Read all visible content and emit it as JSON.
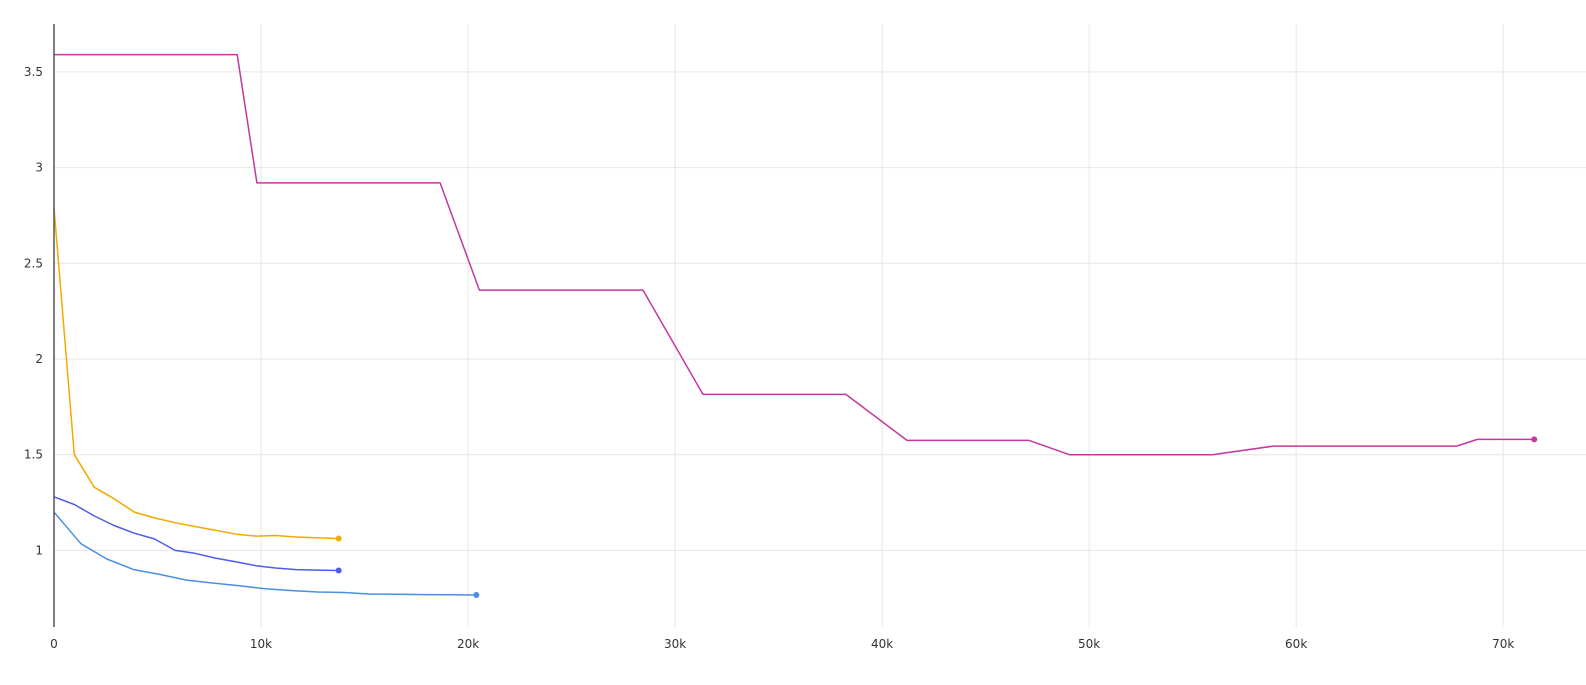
{
  "chart_data": {
    "type": "line",
    "title": "",
    "xlabel": "",
    "ylabel": "",
    "xlim": [
      0,
      74000
    ],
    "ylim": [
      0.6,
      3.75
    ],
    "grid": true,
    "legend": "none",
    "x_ticks": [
      {
        "value": 0,
        "label": "0"
      },
      {
        "value": 10000,
        "label": "10k"
      },
      {
        "value": 20000,
        "label": "20k"
      },
      {
        "value": 30000,
        "label": "30k"
      },
      {
        "value": 40000,
        "label": "40k"
      },
      {
        "value": 50000,
        "label": "50k"
      },
      {
        "value": 60000,
        "label": "60k"
      },
      {
        "value": 70000,
        "label": "70k"
      }
    ],
    "y_ticks": [
      {
        "value": 1,
        "label": "1"
      },
      {
        "value": 1.5,
        "label": "1.5"
      },
      {
        "value": 2,
        "label": "2"
      },
      {
        "value": 2.5,
        "label": "2.5"
      },
      {
        "value": 3,
        "label": "3"
      },
      {
        "value": 3.5,
        "label": "3.5"
      }
    ],
    "series": [
      {
        "color": "#c2389e",
        "points": [
          [
            0,
            3.59
          ],
          [
            8850,
            3.59
          ],
          [
            9800,
            2.92
          ],
          [
            18650,
            2.92
          ],
          [
            20550,
            2.36
          ],
          [
            28450,
            2.36
          ],
          [
            31350,
            1.815
          ],
          [
            38250,
            1.815
          ],
          [
            41200,
            1.575
          ],
          [
            47100,
            1.575
          ],
          [
            49050,
            1.5
          ],
          [
            55950,
            1.5
          ],
          [
            58900,
            1.545
          ],
          [
            67750,
            1.545
          ],
          [
            68750,
            1.58
          ],
          [
            71500,
            1.58
          ]
        ]
      },
      {
        "color": "#f4a900",
        "points": [
          [
            0,
            2.79
          ],
          [
            980,
            1.5
          ],
          [
            1950,
            1.33
          ],
          [
            2900,
            1.27
          ],
          [
            3880,
            1.2
          ],
          [
            4850,
            1.17
          ],
          [
            5850,
            1.145
          ],
          [
            6800,
            1.125
          ],
          [
            7800,
            1.105
          ],
          [
            8800,
            1.085
          ],
          [
            9750,
            1.075
          ],
          [
            10700,
            1.078
          ],
          [
            11700,
            1.07
          ],
          [
            12700,
            1.066
          ],
          [
            13750,
            1.062
          ]
        ]
      },
      {
        "color": "#4f5bed",
        "points": [
          [
            0,
            1.28
          ],
          [
            980,
            1.24
          ],
          [
            1950,
            1.18
          ],
          [
            2900,
            1.13
          ],
          [
            3880,
            1.09
          ],
          [
            4850,
            1.06
          ],
          [
            5850,
            1.0
          ],
          [
            6800,
            0.985
          ],
          [
            7800,
            0.96
          ],
          [
            8800,
            0.94
          ],
          [
            9750,
            0.92
          ],
          [
            10700,
            0.908
          ],
          [
            11700,
            0.9
          ],
          [
            12700,
            0.897
          ],
          [
            13750,
            0.895
          ]
        ]
      },
      {
        "color": "#4a90e2",
        "points": [
          [
            0,
            1.2
          ],
          [
            1300,
            1.035
          ],
          [
            2550,
            0.955
          ],
          [
            3850,
            0.9
          ],
          [
            5100,
            0.875
          ],
          [
            6400,
            0.845
          ],
          [
            7650,
            0.83
          ],
          [
            8950,
            0.815
          ],
          [
            10200,
            0.8
          ],
          [
            11500,
            0.79
          ],
          [
            12750,
            0.783
          ],
          [
            14000,
            0.78
          ],
          [
            15300,
            0.772
          ],
          [
            16550,
            0.771
          ],
          [
            17850,
            0.769
          ],
          [
            19100,
            0.768
          ],
          [
            20400,
            0.767
          ]
        ]
      }
    ]
  }
}
